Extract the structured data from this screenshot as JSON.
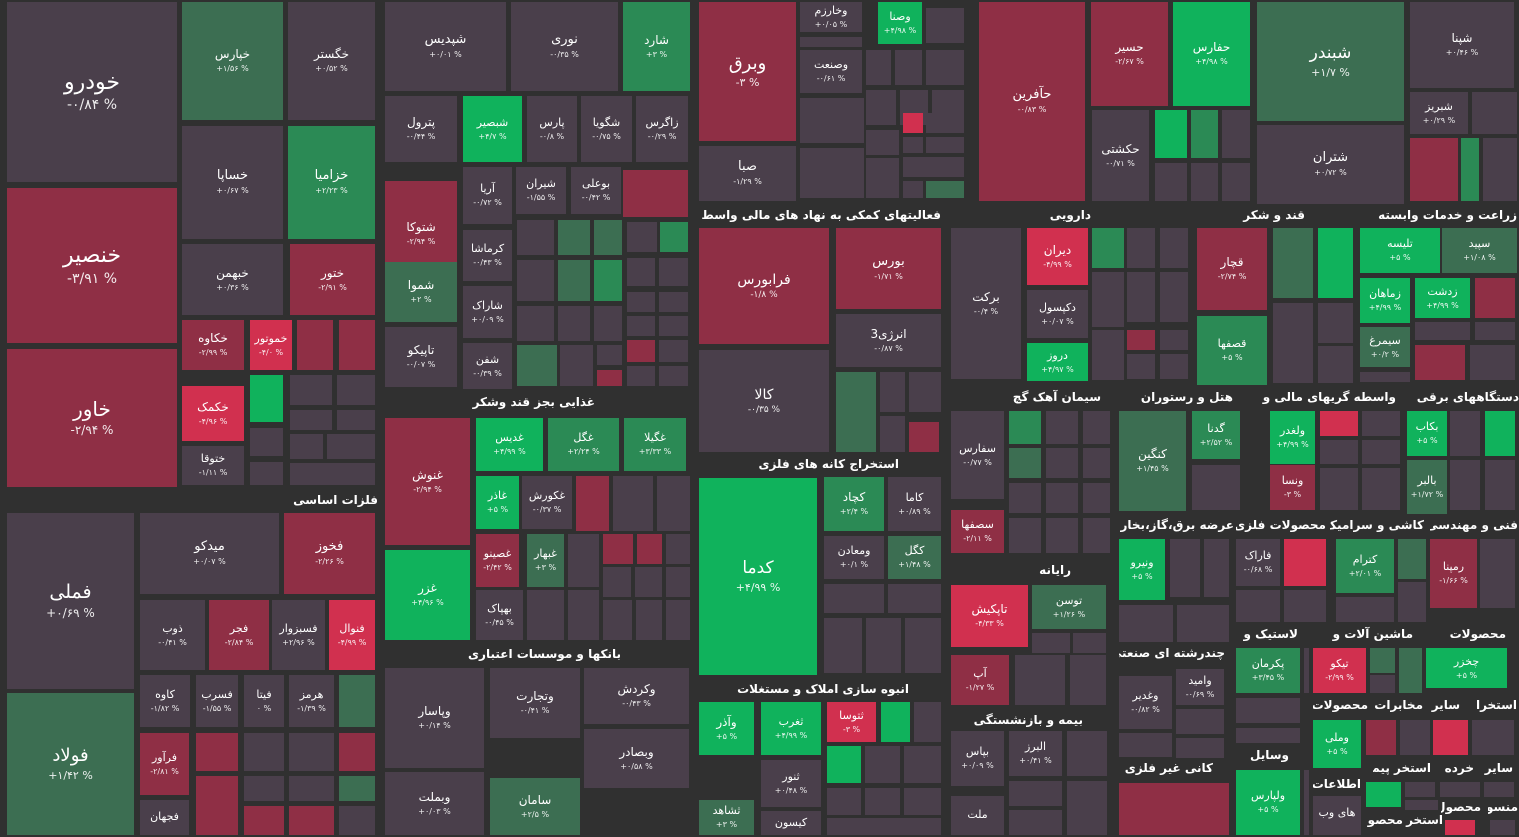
{
  "colors": {
    "background": "#303030",
    "neutral": "#4a3f4b",
    "red_dark": "#8f2f45",
    "red_bright": "#d1304f",
    "green_dark": "#3c6e52",
    "green_mid": "#2b8a55",
    "green_bright": "#10b25c"
  },
  "sectors": [
    {
      "name": "فلزات اساسی"
    },
    {
      "name": "غذایی بجز قند وشکر"
    },
    {
      "name": "بانکها و موسسات اعتباری"
    },
    {
      "name": "فعالیتهای کمکی به نهاد های مالی واسط"
    },
    {
      "name": "استخراج کانه های فلزی"
    },
    {
      "name": "انبوه سازی املاک و مستغلات"
    },
    {
      "name": "دارویی"
    },
    {
      "name": "قند و شکر"
    },
    {
      "name": "زراعت و خدمات وابسته"
    },
    {
      "name": "سیمان آهک گچ"
    },
    {
      "name": "هتل و رستوران"
    },
    {
      "name": "واسطه گریهای مالی و"
    },
    {
      "name": "دستگاههای برقی"
    },
    {
      "name": "عرضه برق،گاز،بخار و"
    },
    {
      "name": "محصولات فلزی"
    },
    {
      "name": "کاشی و سرامیک"
    },
    {
      "name": "فنی و مهندسی"
    },
    {
      "name": "رایانه"
    },
    {
      "name": "لاستیک و"
    },
    {
      "name": "ماشین آلات و"
    },
    {
      "name": "محصولات"
    },
    {
      "name": "چندرشته ای صنعتی"
    },
    {
      "name": "بیمه و بازنشستگی"
    },
    {
      "name": "وسایل"
    },
    {
      "name": "محصولات"
    },
    {
      "name": "مخابرات"
    },
    {
      "name": "سایر"
    },
    {
      "name": "استخرا"
    },
    {
      "name": "کانی غیر فلزی"
    },
    {
      "name": "اطلاعات"
    },
    {
      "name": "سایر"
    },
    {
      "name": "خرده"
    },
    {
      "name": "استخر پیمانکا"
    },
    {
      "name": "منسو"
    },
    {
      "name": "محصول"
    },
    {
      "name": "استخر"
    },
    {
      "name": "محصو"
    }
  ],
  "tiles": [
    {
      "name": "خودرو",
      "pct": "-۰/۸۴ %",
      "color": "n"
    },
    {
      "name": "خنصیر",
      "pct": "-۳/۹۱ %",
      "color": "rd"
    },
    {
      "name": "خاور",
      "pct": "-۲/۹۴ %",
      "color": "rd"
    },
    {
      "name": "خپارس",
      "pct": "+۱/۵۶ %",
      "color": "gd"
    },
    {
      "name": "خگستر",
      "pct": "+۰/۵۲ %",
      "color": "n"
    },
    {
      "name": "خساپا",
      "pct": "+۰/۶۷ %",
      "color": "n"
    },
    {
      "name": "خزامیا",
      "pct": "+۲/۲۳ %",
      "color": "gm"
    },
    {
      "name": "خبهمن",
      "pct": "+۰/۳۶ %",
      "color": "n"
    },
    {
      "name": "ختور",
      "pct": "-۲/۹۱ %",
      "color": "rd"
    },
    {
      "name": "خکاوه",
      "pct": "-۲/۹۹ %",
      "color": "rd"
    },
    {
      "name": "خموتور",
      "pct": "-۴/۰ %",
      "color": "rb"
    },
    {
      "name": "خکمک",
      "pct": "-۴/۹۶ %",
      "color": "rb"
    },
    {
      "name": "ختوقا",
      "pct": "-۱/۱۱ %",
      "color": "n"
    },
    {
      "name": "فملی",
      "pct": "+۰/۶۹ %",
      "color": "n"
    },
    {
      "name": "فولاد",
      "pct": "+۱/۴۲ %",
      "color": "gd"
    },
    {
      "name": "میدکو",
      "pct": "+۰/۰۷ %",
      "color": "n"
    },
    {
      "name": "فخوز",
      "pct": "-۲/۲۶ %",
      "color": "rd"
    },
    {
      "name": "ذوب",
      "pct": "-۰/۴۱ %",
      "color": "n"
    },
    {
      "name": "فجر",
      "pct": "-۲/۸۴ %",
      "color": "rd"
    },
    {
      "name": "فسبزوار",
      "pct": "+۲/۹۶ %",
      "color": "n"
    },
    {
      "name": "فنوال",
      "pct": "-۴/۹۹ %",
      "color": "rb"
    },
    {
      "name": "کاوه",
      "pct": "-۱/۸۲ %",
      "color": "n"
    },
    {
      "name": "فسرب",
      "pct": "-۱/۵۵ %",
      "color": "n"
    },
    {
      "name": "فیتا",
      "pct": "۰ %",
      "color": "n"
    },
    {
      "name": "هرمز",
      "pct": "-۱/۳۹ %",
      "color": "n"
    },
    {
      "name": "فرآور",
      "pct": "-۲/۸۱ %",
      "color": "rd"
    },
    {
      "name": "فجهان",
      "pct": "",
      "color": "n"
    },
    {
      "name": "شپدیس",
      "pct": "+۰/۰۱ %",
      "color": "n"
    },
    {
      "name": "نوری",
      "pct": "-۰/۳۵ %",
      "color": "n"
    },
    {
      "name": "شارد",
      "pct": "+۳ %",
      "color": "gm"
    },
    {
      "name": "پترول",
      "pct": "-۰/۴۴ %",
      "color": "n"
    },
    {
      "name": "شبصیر",
      "pct": "+۴/۷ %",
      "color": "gb"
    },
    {
      "name": "پارس",
      "pct": "-۰/۸ %",
      "color": "n"
    },
    {
      "name": "شگویا",
      "pct": "-۰/۷۵ %",
      "color": "n"
    },
    {
      "name": "زاگرس",
      "pct": "-۰/۲۹ %",
      "color": "n"
    },
    {
      "name": "آریا",
      "pct": "-۰/۷۲ %",
      "color": "n"
    },
    {
      "name": "شیران",
      "pct": "-۱/۵۵ %",
      "color": "n"
    },
    {
      "name": "بوعلی",
      "pct": "-۰/۴۲ %",
      "color": "n"
    },
    {
      "name": "شتوکا",
      "pct": "-۲/۹۴ %",
      "color": "rd"
    },
    {
      "name": "کرماشا",
      "pct": "-۰/۴۳ %",
      "color": "n"
    },
    {
      "name": "شاراک",
      "pct": "+۰/۰۹ %",
      "color": "n"
    },
    {
      "name": "شفن",
      "pct": "-۰/۳۹ %",
      "color": "n"
    },
    {
      "name": "شموا",
      "pct": "+۲ %",
      "color": "gd"
    },
    {
      "name": "تاپیکو",
      "pct": "-۰/۰۷ %",
      "color": "n"
    },
    {
      "name": "وبرق",
      "pct": "-۳ %",
      "color": "rd"
    },
    {
      "name": "وخارزم",
      "pct": "+۰/۰۵ %",
      "color": "n"
    },
    {
      "name": "وصنا",
      "pct": "+۴/۹۸ %",
      "color": "gb"
    },
    {
      "name": "وصنعت",
      "pct": "-۰/۶۱ %",
      "color": "n"
    },
    {
      "name": "صبا",
      "pct": "-۱/۲۹ %",
      "color": "n"
    },
    {
      "name": "حآفرین",
      "pct": "-۰/۸۳ %",
      "color": "rd"
    },
    {
      "name": "حسیر",
      "pct": "-۲/۶۷ %",
      "color": "rd"
    },
    {
      "name": "حفارس",
      "pct": "+۴/۹۸ %",
      "color": "gb"
    },
    {
      "name": "حکشتی",
      "pct": "-۰/۷۱ %",
      "color": "n"
    },
    {
      "name": "شبندر",
      "pct": "+۱/۷ %",
      "color": "gd"
    },
    {
      "name": "شتران",
      "pct": "+۰/۷۲ %",
      "color": "n"
    },
    {
      "name": "شپنا",
      "pct": "+۰/۴۶ %",
      "color": "n"
    },
    {
      "name": "شبریز",
      "pct": "+۰/۲۹ %",
      "color": "n"
    },
    {
      "name": "فرابورس",
      "pct": "-۱/۸ %",
      "color": "rd"
    },
    {
      "name": "بورس",
      "pct": "-۱/۷۱ %",
      "color": "rd"
    },
    {
      "name": "انرژی3",
      "pct": "-۰/۸۷ %",
      "color": "n"
    },
    {
      "name": "کالا",
      "pct": "-۰/۳۵ %",
      "color": "n"
    },
    {
      "name": "کدما",
      "pct": "+۴/۹۹ %",
      "color": "gb"
    },
    {
      "name": "کچاد",
      "pct": "+۲/۴ %",
      "color": "gm"
    },
    {
      "name": "کاما",
      "pct": "+۰/۸۹ %",
      "color": "n"
    },
    {
      "name": "ومعادن",
      "pct": "+۰/۱ %",
      "color": "n"
    },
    {
      "name": "کگل",
      "pct": "+۱/۴۸ %",
      "color": "gd"
    },
    {
      "name": "وآذر",
      "pct": "+۵ %",
      "color": "gb"
    },
    {
      "name": "ثغرب",
      "pct": "+۴/۹۹ %",
      "color": "gb"
    },
    {
      "name": "ثتوسا",
      "pct": "-۳ %",
      "color": "rb"
    },
    {
      "name": "ثنور",
      "pct": "+۰/۴۸ %",
      "color": "n"
    },
    {
      "name": "ثشاهد",
      "pct": "+۳ %",
      "color": "gd"
    },
    {
      "name": "کیسون",
      "pct": "",
      "color": "n"
    },
    {
      "name": "برکت",
      "pct": "-۰/۴ %",
      "color": "n"
    },
    {
      "name": "دیران",
      "pct": "-۴/۹۹ %",
      "color": "rb"
    },
    {
      "name": "دکپسول",
      "pct": "+۰/۰۷ %",
      "color": "n"
    },
    {
      "name": "دروز",
      "pct": "+۴/۹۷ %",
      "color": "gb"
    },
    {
      "name": "قچار",
      "pct": "-۲/۷۴ %",
      "color": "rd"
    },
    {
      "name": "قصفها",
      "pct": "+۵ %",
      "color": "gm"
    },
    {
      "name": "تلیسه",
      "pct": "+۵ %",
      "color": "gb"
    },
    {
      "name": "سپید",
      "pct": "+۱/۰۸ %",
      "color": "gd"
    },
    {
      "name": "زماهان",
      "pct": "+۴/۹۹ %",
      "color": "gb"
    },
    {
      "name": "زدشت",
      "pct": "+۴/۹۹ %",
      "color": "gb"
    },
    {
      "name": "سیمرغ",
      "pct": "+۰/۲ %",
      "color": "gd"
    },
    {
      "name": "سفارس",
      "pct": "-۰/۷۷ %",
      "color": "n"
    },
    {
      "name": "سصفها",
      "pct": "-۲/۱۱ %",
      "color": "rd"
    },
    {
      "name": "کنگین",
      "pct": "+۱/۴۵ %",
      "color": "gd"
    },
    {
      "name": "گدنا",
      "pct": "+۲/۵۲ %",
      "color": "gm"
    },
    {
      "name": "ولغدر",
      "pct": "+۴/۹۹ %",
      "color": "gb"
    },
    {
      "name": "ونسا",
      "pct": "-۳ %",
      "color": "rd"
    },
    {
      "name": "بکاب",
      "pct": "+۵ %",
      "color": "gb"
    },
    {
      "name": "بالبر",
      "pct": "+۱/۷۲ %",
      "color": "gd"
    },
    {
      "name": "ونیرو",
      "pct": "+۵ %",
      "color": "gb"
    },
    {
      "name": "فاراک",
      "pct": "-۰/۶۸ %",
      "color": "n"
    },
    {
      "name": "کترام",
      "pct": "+۲/۰۱ %",
      "color": "gm"
    },
    {
      "name": "رمپنا",
      "pct": "-۱/۶۶ %",
      "color": "rd"
    },
    {
      "name": "تاپکیش",
      "pct": "-۴/۳۳ %",
      "color": "rb"
    },
    {
      "name": "توسن",
      "pct": "+۱/۲۶ %",
      "color": "gd"
    },
    {
      "name": "آپ",
      "pct": "-۱/۲۷ %",
      "color": "rd"
    },
    {
      "name": "پکرمان",
      "pct": "+۳/۴۵ %",
      "color": "gm"
    },
    {
      "name": "تیکو",
      "pct": "-۲/۹۹ %",
      "color": "rb"
    },
    {
      "name": "چخزر",
      "pct": "+۵ %",
      "color": "gb"
    },
    {
      "name": "وامید",
      "pct": "-۰/۶۹ %",
      "color": "n"
    },
    {
      "name": "وغدیر",
      "pct": "-۰/۸۲ %",
      "color": "n"
    },
    {
      "name": "بپاس",
      "pct": "+۰/۰۹ %",
      "color": "n"
    },
    {
      "name": "البرز",
      "pct": "+۰/۴۱ %",
      "color": "n"
    },
    {
      "name": "ملت",
      "pct": "",
      "color": "n"
    },
    {
      "name": "ولپارس",
      "pct": "+۵ %",
      "color": "gb"
    },
    {
      "name": "وملی",
      "pct": "+۵ %",
      "color": "gb"
    },
    {
      "name": "های وب",
      "pct": "",
      "color": "n"
    },
    {
      "name": "غنوش",
      "pct": "-۲/۹۴ %",
      "color": "rd"
    },
    {
      "name": "غدیس",
      "pct": "+۴/۹۹ %",
      "color": "gb"
    },
    {
      "name": "غگل",
      "pct": "+۲/۲۴ %",
      "color": "gm"
    },
    {
      "name": "غگیلا",
      "pct": "+۳/۳۳ %",
      "color": "gm"
    },
    {
      "name": "غاذر",
      "pct": "+۵ %",
      "color": "gb"
    },
    {
      "name": "غکورش",
      "pct": "-۰/۳۷ %",
      "color": "n"
    },
    {
      "name": "غزر",
      "pct": "+۴/۹۶ %",
      "color": "gb"
    },
    {
      "name": "غصینو",
      "pct": "-۲/۴۲ %",
      "color": "rd"
    },
    {
      "name": "غبهار",
      "pct": "+۳ %",
      "color": "gd"
    },
    {
      "name": "بهپاک",
      "pct": "-۰/۴۵ %",
      "color": "n"
    },
    {
      "name": "وپاسار",
      "pct": "+۰/۱۴ %",
      "color": "n"
    },
    {
      "name": "وتجارت",
      "pct": "-۰/۴۱ %",
      "color": "n"
    },
    {
      "name": "وکردش",
      "pct": "-۰/۴۳ %",
      "color": "n"
    },
    {
      "name": "وبصادر",
      "pct": "+۰/۵۸ %",
      "color": "n"
    },
    {
      "name": "وبملت",
      "pct": "+۰/۰۳ %",
      "color": "n"
    },
    {
      "name": "سامان",
      "pct": "+۲/۵ %",
      "color": "gd"
    }
  ]
}
